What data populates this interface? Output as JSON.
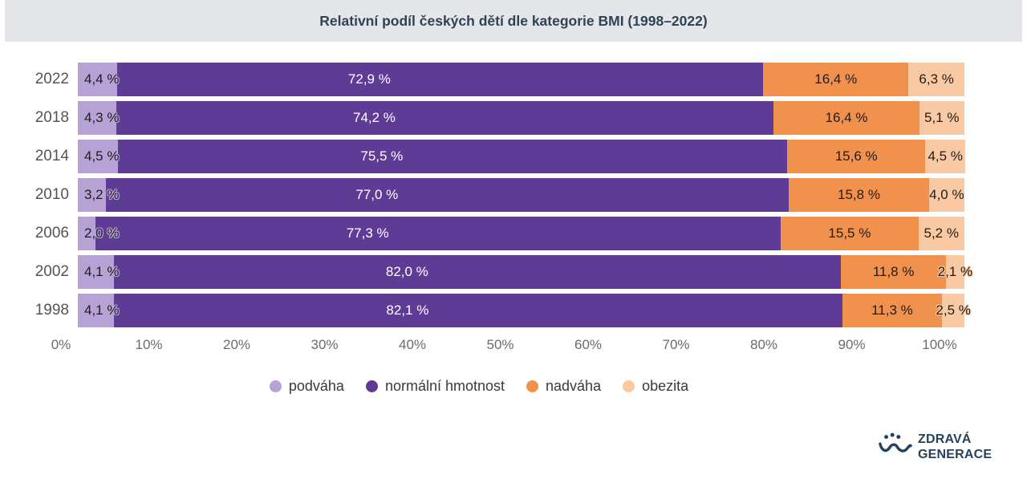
{
  "title": "Relativní podíl českých dětí dle kategorie BMI (1998–2022)",
  "colors": {
    "header_bg": "#e5e6ea",
    "title_text": "#2e4456",
    "podvaha": "#b6a2d4",
    "normalni_hmotnost": "#5e3c96",
    "nadvaha": "#f0914d",
    "obezita": "#f8c9a2",
    "logo_navy": "#25425c"
  },
  "chart_data": {
    "type": "bar",
    "orientation": "horizontal",
    "stacked": true,
    "title": "Relativní podíl českých dětí dle kategorie BMI (1998–2022)",
    "categories": [
      "2022",
      "2018",
      "2014",
      "2010",
      "2006",
      "2002",
      "1998"
    ],
    "series": [
      {
        "name": "podváha",
        "color": "#b6a2d4",
        "values": [
          4.4,
          4.3,
          4.5,
          3.2,
          2.0,
          4.1,
          4.1
        ],
        "labels": [
          "4,4 %",
          "4,3 %",
          "4,5 %",
          "3,2 %",
          "2,0 %",
          "4,1 %",
          "4,1 %"
        ]
      },
      {
        "name": "normální hmotnost",
        "color": "#5e3c96",
        "values": [
          72.9,
          74.2,
          75.5,
          77.0,
          77.3,
          82.0,
          82.1
        ],
        "labels": [
          "72,9 %",
          "74,2 %",
          "75,5 %",
          "77,0 %",
          "77,3 %",
          "82,0 %",
          "82,1 %"
        ]
      },
      {
        "name": "nadváha",
        "color": "#f0914d",
        "values": [
          16.4,
          16.4,
          15.6,
          15.8,
          15.5,
          11.8,
          11.3
        ],
        "labels": [
          "16,4 %",
          "16,4 %",
          "15,6 %",
          "15,8 %",
          "15,5 %",
          "11,8 %",
          "11,3 %"
        ]
      },
      {
        "name": "obezita",
        "color": "#f8c9a2",
        "values": [
          6.3,
          5.1,
          4.5,
          4.0,
          5.2,
          2.1,
          2.5
        ],
        "labels": [
          "6,3 %",
          "5,1 %",
          "4,5 %",
          "4,0 %",
          "5,2 %",
          "2,1 %",
          "2,5 %"
        ]
      }
    ],
    "x_ticks": [
      "0%",
      "10%",
      "20%",
      "30%",
      "40%",
      "50%",
      "60%",
      "70%",
      "80%",
      "90%",
      "100%"
    ],
    "xlim": [
      0,
      100
    ],
    "grid": false,
    "legend_position": "bottom"
  },
  "logo": {
    "line1": "ZDRAVÁ",
    "line2": "GENERACE"
  }
}
